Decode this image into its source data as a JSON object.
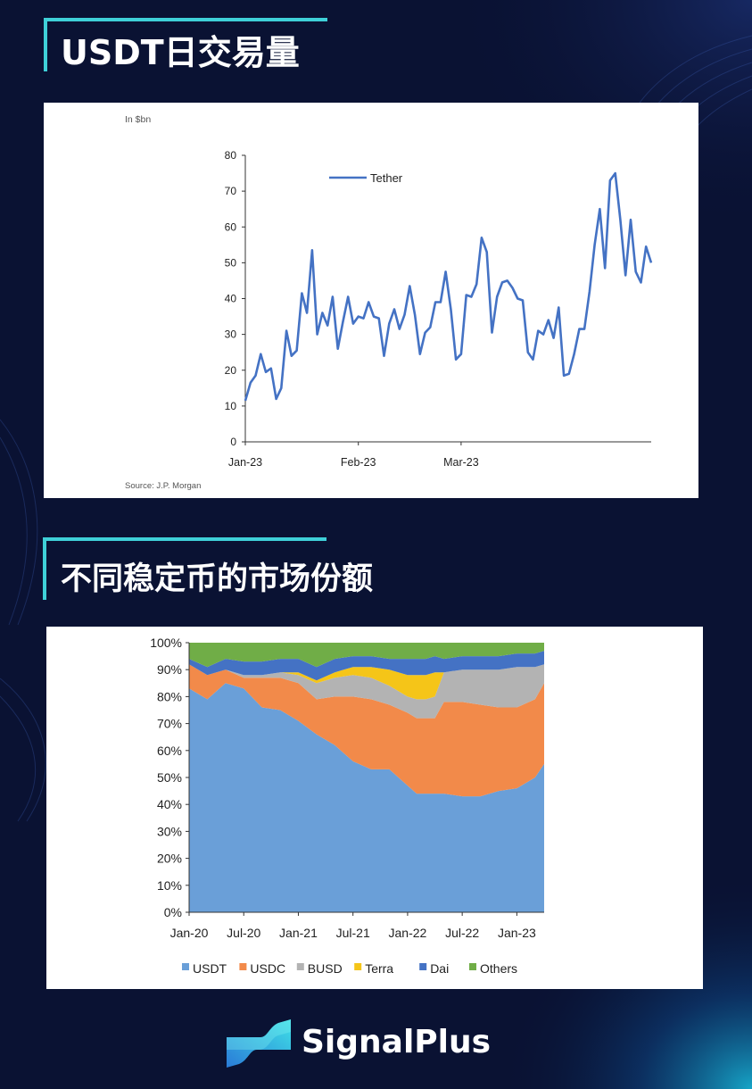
{
  "titles": {
    "chart1": "USDT日交易量",
    "chart2": "不同稳定币的市场份额"
  },
  "brand": {
    "name": "SignalPlus"
  },
  "colors": {
    "background": "#0a1233",
    "accent": "#3fd0d8",
    "tether_line": "#4472c4"
  },
  "chart_data": [
    {
      "type": "line",
      "unit_label": "In $bn",
      "source": "Source: J.P. Morgan",
      "legend_position": "top-center",
      "grid": false,
      "ylim": [
        0,
        80
      ],
      "y_ticks": [
        0,
        10,
        20,
        30,
        40,
        50,
        60,
        70,
        80
      ],
      "x_tick_labels": [
        "Jan-23",
        "Feb-23",
        "Mar-23"
      ],
      "x_tick_index": [
        0,
        22,
        42
      ],
      "series": [
        {
          "name": "Tether",
          "color": "#4472c4",
          "values": [
            11.5,
            16.5,
            18.5,
            24.5,
            19.5,
            20.5,
            12,
            15,
            31,
            24,
            25.5,
            41.5,
            36,
            53.5,
            30,
            36,
            32.5,
            40.5,
            26,
            33.5,
            40.5,
            33,
            35,
            34.5,
            39,
            35,
            34.5,
            24,
            33,
            37,
            31.5,
            35.5,
            43.5,
            35.5,
            24.5,
            30.5,
            32,
            39,
            39,
            47.5,
            37,
            23,
            24.5,
            41,
            40.5,
            44,
            57,
            53,
            30.5,
            40.5,
            44.5,
            45,
            43,
            40,
            39.5,
            25,
            23,
            31,
            30,
            34,
            29,
            37.5,
            18.5,
            19,
            24.5,
            31.5,
            31.5,
            42,
            55,
            65,
            48.5,
            73,
            75,
            62,
            46.5,
            62,
            47.5,
            44.5,
            54.5,
            50
          ]
        }
      ]
    },
    {
      "type": "area",
      "stacked": true,
      "ylim": [
        0,
        100
      ],
      "y_tick_labels": [
        "0%",
        "10%",
        "20%",
        "30%",
        "40%",
        "50%",
        "60%",
        "70%",
        "80%",
        "90%",
        "100%"
      ],
      "x_tick_labels": [
        "Jan-20",
        "Jul-20",
        "Jan-21",
        "Jul-21",
        "Jan-22",
        "Jul-22",
        "Jan-23"
      ],
      "x_tick_months": [
        0,
        6,
        12,
        18,
        24,
        30,
        36
      ],
      "x_range_months": [
        0,
        39
      ],
      "legend_position": "bottom",
      "series": [
        {
          "name": "USDT",
          "color": "#6a9fd8",
          "x": [
            0,
            2,
            4,
            6,
            8,
            10,
            12,
            14,
            16,
            18,
            20,
            22,
            24,
            25,
            26,
            27,
            28,
            30,
            32,
            34,
            36,
            38,
            39
          ],
          "values": [
            83,
            79,
            85,
            83,
            76,
            75,
            71,
            66,
            62,
            56,
            53,
            53,
            47,
            44,
            44,
            44,
            44,
            43,
            43,
            45,
            46,
            50,
            55
          ]
        },
        {
          "name": "USDC",
          "color": "#f28a4a",
          "x": [
            0,
            2,
            4,
            6,
            8,
            10,
            12,
            14,
            16,
            18,
            20,
            22,
            24,
            25,
            26,
            27,
            28,
            30,
            32,
            34,
            36,
            38,
            39
          ],
          "values": [
            9,
            9,
            5,
            4,
            11,
            12,
            14,
            13,
            18,
            24,
            26,
            24,
            27,
            28,
            28,
            28,
            34,
            35,
            34,
            31,
            30,
            29,
            30
          ]
        },
        {
          "name": "BUSD",
          "color": "#b3b3b3",
          "x": [
            0,
            2,
            4,
            6,
            8,
            10,
            12,
            14,
            16,
            18,
            20,
            22,
            24,
            25,
            26,
            27,
            28,
            30,
            32,
            34,
            36,
            38,
            39
          ],
          "values": [
            0,
            0,
            0,
            1,
            1,
            2,
            3,
            6,
            7,
            8,
            8,
            7,
            6,
            7,
            7,
            8,
            11,
            12,
            13,
            14,
            15,
            12,
            7
          ]
        },
        {
          "name": "Terra",
          "color": "#f5c518",
          "x": [
            0,
            2,
            4,
            6,
            8,
            10,
            12,
            14,
            16,
            18,
            20,
            22,
            24,
            25,
            26,
            27,
            28,
            30,
            32,
            34,
            36,
            38,
            39
          ],
          "values": [
            0,
            0,
            0,
            0,
            0,
            0,
            1,
            1,
            2,
            3,
            4,
            6,
            8,
            9,
            9,
            9,
            0,
            0,
            0,
            0,
            0,
            0,
            0
          ]
        },
        {
          "name": "Dai",
          "color": "#4472c4",
          "x": [
            0,
            2,
            4,
            6,
            8,
            10,
            12,
            14,
            16,
            18,
            20,
            22,
            24,
            25,
            26,
            27,
            28,
            30,
            32,
            34,
            36,
            38,
            39
          ],
          "values": [
            2,
            3,
            4,
            5,
            5,
            5,
            5,
            5,
            5,
            4,
            4,
            4,
            6,
            6,
            6,
            6,
            5,
            5,
            5,
            5,
            5,
            5,
            5
          ]
        },
        {
          "name": "Others",
          "color": "#70ad47",
          "x": [
            0,
            2,
            4,
            6,
            8,
            10,
            12,
            14,
            16,
            18,
            20,
            22,
            24,
            25,
            26,
            27,
            28,
            30,
            32,
            34,
            36,
            38,
            39
          ],
          "values": [
            6,
            9,
            6,
            7,
            7,
            6,
            6,
            9,
            6,
            5,
            5,
            6,
            6,
            6,
            6,
            5,
            6,
            5,
            5,
            5,
            4,
            4,
            3
          ]
        }
      ]
    }
  ]
}
